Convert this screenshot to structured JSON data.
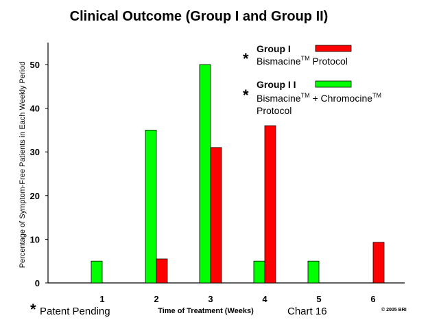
{
  "chart_data": {
    "type": "bar",
    "title": "Clinical Outcome (Group I and Group II)",
    "xlabel": "Time of Treatment (Weeks)",
    "ylabel": "Percentage of Symptom-Free Patients in Each Weekly Period",
    "categories": [
      "1",
      "2",
      "3",
      "4",
      "5",
      "6"
    ],
    "ylim": [
      0,
      55
    ],
    "yticks": [
      "0",
      "10",
      "20",
      "30",
      "40",
      "50"
    ],
    "series": [
      {
        "name": "Group I I",
        "color": "#00ff00",
        "values": [
          5,
          35,
          50,
          5,
          5,
          null
        ]
      },
      {
        "name": "Group I",
        "color": "#ff0000",
        "values": [
          null,
          5.5,
          31,
          36,
          null,
          9.3
        ]
      }
    ],
    "bar_values_note": "",
    "legend": {
      "placement": "top-right",
      "group1": {
        "title": "Group I",
        "desc_pre": "Bismacine",
        "desc_sup": "TM",
        "desc_post": " Protocol"
      },
      "group2": {
        "title": "Group I I",
        "desc_line1_a": "Bismacine",
        "desc_line1_sup_a": "TM",
        "desc_line1_b": " + Chromocine",
        "desc_line1_sup_b": "TM",
        "desc_line2": "Protocol"
      },
      "asterisk": "*"
    },
    "grid": false
  },
  "footer": {
    "asterisk": "*",
    "patent": "Patent Pending",
    "chart_label": "Chart 16",
    "copyright": "© 2005 BRI"
  }
}
